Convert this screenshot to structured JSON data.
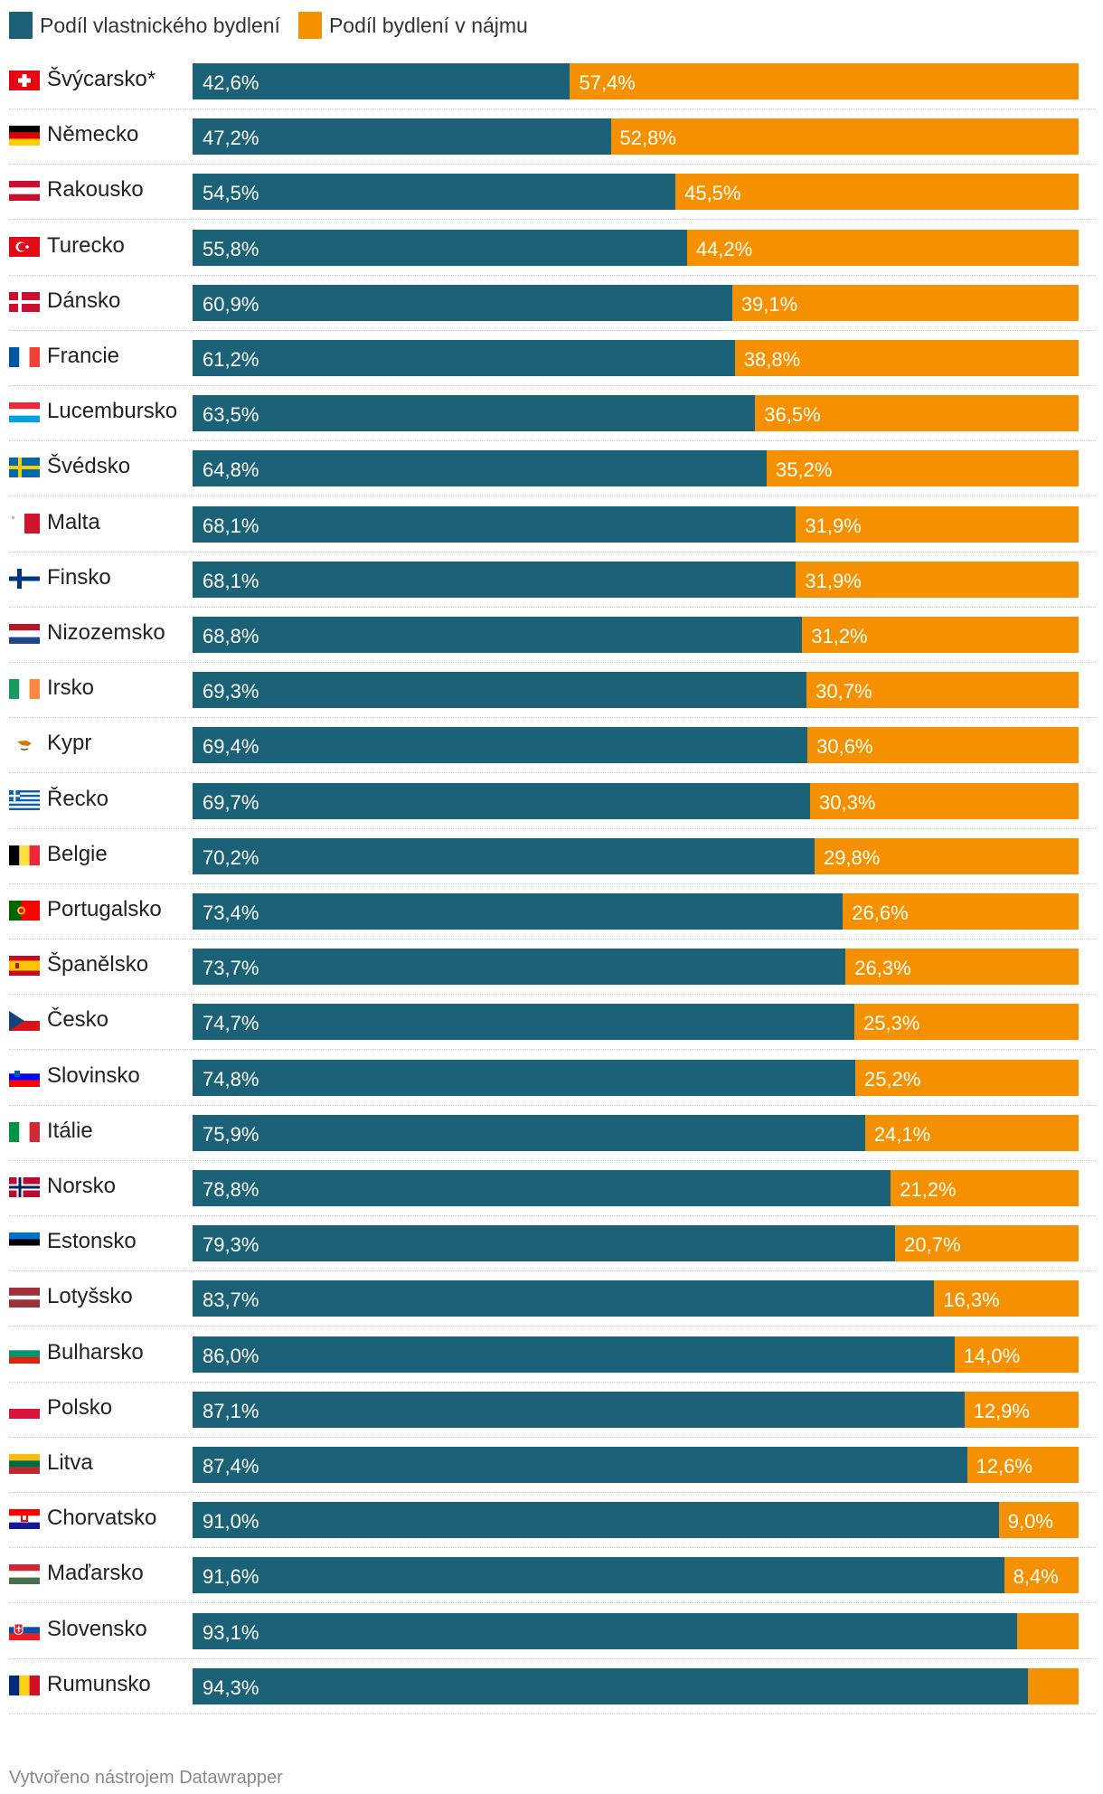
{
  "legend": {
    "owner_label": "Podíl vlastnického bydlení",
    "rent_label": "Podíl bydlení v nájmu"
  },
  "colors": {
    "owner": "#1b6278",
    "rent": "#f59100"
  },
  "footer": "Vytvořeno nástrojem Datawrapper",
  "chart_data": {
    "type": "bar",
    "orientation": "horizontal",
    "stacked": true,
    "xlim": [
      0,
      100
    ],
    "legend_position": "top-left",
    "series": [
      {
        "name": "Podíl vlastnického bydlení",
        "key": "owner"
      },
      {
        "name": "Podíl bydlení v nájmu",
        "key": "rent"
      }
    ],
    "rows": [
      {
        "country": "Švýcarsko*",
        "flag": "ch",
        "owner": 42.6,
        "rent": 57.4,
        "owner_label": "42,6%",
        "rent_label": "57,4%"
      },
      {
        "country": "Německo",
        "flag": "de",
        "owner": 47.2,
        "rent": 52.8,
        "owner_label": "47,2%",
        "rent_label": "52,8%"
      },
      {
        "country": "Rakousko",
        "flag": "at",
        "owner": 54.5,
        "rent": 45.5,
        "owner_label": "54,5%",
        "rent_label": "45,5%"
      },
      {
        "country": "Turecko",
        "flag": "tr",
        "owner": 55.8,
        "rent": 44.2,
        "owner_label": "55,8%",
        "rent_label": "44,2%"
      },
      {
        "country": "Dánsko",
        "flag": "dk",
        "owner": 60.9,
        "rent": 39.1,
        "owner_label": "60,9%",
        "rent_label": "39,1%"
      },
      {
        "country": "Francie",
        "flag": "fr",
        "owner": 61.2,
        "rent": 38.8,
        "owner_label": "61,2%",
        "rent_label": "38,8%"
      },
      {
        "country": "Lucembursko",
        "flag": "lu",
        "owner": 63.5,
        "rent": 36.5,
        "owner_label": "63,5%",
        "rent_label": "36,5%"
      },
      {
        "country": "Švédsko",
        "flag": "se",
        "owner": 64.8,
        "rent": 35.2,
        "owner_label": "64,8%",
        "rent_label": "35,2%"
      },
      {
        "country": "Malta",
        "flag": "mt",
        "owner": 68.1,
        "rent": 31.9,
        "owner_label": "68,1%",
        "rent_label": "31,9%"
      },
      {
        "country": "Finsko",
        "flag": "fi",
        "owner": 68.1,
        "rent": 31.9,
        "owner_label": "68,1%",
        "rent_label": "31,9%"
      },
      {
        "country": "Nizozemsko",
        "flag": "nl",
        "owner": 68.8,
        "rent": 31.2,
        "owner_label": "68,8%",
        "rent_label": "31,2%"
      },
      {
        "country": "Irsko",
        "flag": "ie",
        "owner": 69.3,
        "rent": 30.7,
        "owner_label": "69,3%",
        "rent_label": "30,7%"
      },
      {
        "country": "Kypr",
        "flag": "cy",
        "owner": 69.4,
        "rent": 30.6,
        "owner_label": "69,4%",
        "rent_label": "30,6%"
      },
      {
        "country": "Řecko",
        "flag": "gr",
        "owner": 69.7,
        "rent": 30.3,
        "owner_label": "69,7%",
        "rent_label": "30,3%"
      },
      {
        "country": "Belgie",
        "flag": "be",
        "owner": 70.2,
        "rent": 29.8,
        "owner_label": "70,2%",
        "rent_label": "29,8%"
      },
      {
        "country": "Portugalsko",
        "flag": "pt",
        "owner": 73.4,
        "rent": 26.6,
        "owner_label": "73,4%",
        "rent_label": "26,6%"
      },
      {
        "country": "Španělsko",
        "flag": "es",
        "owner": 73.7,
        "rent": 26.3,
        "owner_label": "73,7%",
        "rent_label": "26,3%"
      },
      {
        "country": "Česko",
        "flag": "cz",
        "owner": 74.7,
        "rent": 25.3,
        "owner_label": "74,7%",
        "rent_label": "25,3%"
      },
      {
        "country": "Slovinsko",
        "flag": "si",
        "owner": 74.8,
        "rent": 25.2,
        "owner_label": "74,8%",
        "rent_label": "25,2%"
      },
      {
        "country": "Itálie",
        "flag": "it",
        "owner": 75.9,
        "rent": 24.1,
        "owner_label": "75,9%",
        "rent_label": "24,1%"
      },
      {
        "country": "Norsko",
        "flag": "no",
        "owner": 78.8,
        "rent": 21.2,
        "owner_label": "78,8%",
        "rent_label": "21,2%"
      },
      {
        "country": "Estonsko",
        "flag": "ee",
        "owner": 79.3,
        "rent": 20.7,
        "owner_label": "79,3%",
        "rent_label": "20,7%"
      },
      {
        "country": "Lotyšsko",
        "flag": "lv",
        "owner": 83.7,
        "rent": 16.3,
        "owner_label": "83,7%",
        "rent_label": "16,3%"
      },
      {
        "country": "Bulharsko",
        "flag": "bg",
        "owner": 86.0,
        "rent": 14.0,
        "owner_label": "86,0%",
        "rent_label": "14,0%"
      },
      {
        "country": "Polsko",
        "flag": "pl",
        "owner": 87.1,
        "rent": 12.9,
        "owner_label": "87,1%",
        "rent_label": "12,9%"
      },
      {
        "country": "Litva",
        "flag": "lt",
        "owner": 87.4,
        "rent": 12.6,
        "owner_label": "87,4%",
        "rent_label": "12,6%"
      },
      {
        "country": "Chorvatsko",
        "flag": "hr",
        "owner": 91.0,
        "rent": 9.0,
        "owner_label": "91,0%",
        "rent_label": "9,0%"
      },
      {
        "country": "Maďarsko",
        "flag": "hu",
        "owner": 91.6,
        "rent": 8.4,
        "owner_label": "91,6%",
        "rent_label": "8,4%"
      },
      {
        "country": "Slovensko",
        "flag": "sk",
        "owner": 93.1,
        "rent": 6.9,
        "owner_label": "93,1%",
        "rent_label": ""
      },
      {
        "country": "Rumunsko",
        "flag": "ro",
        "owner": 94.3,
        "rent": 5.7,
        "owner_label": "94,3%",
        "rent_label": ""
      }
    ]
  }
}
